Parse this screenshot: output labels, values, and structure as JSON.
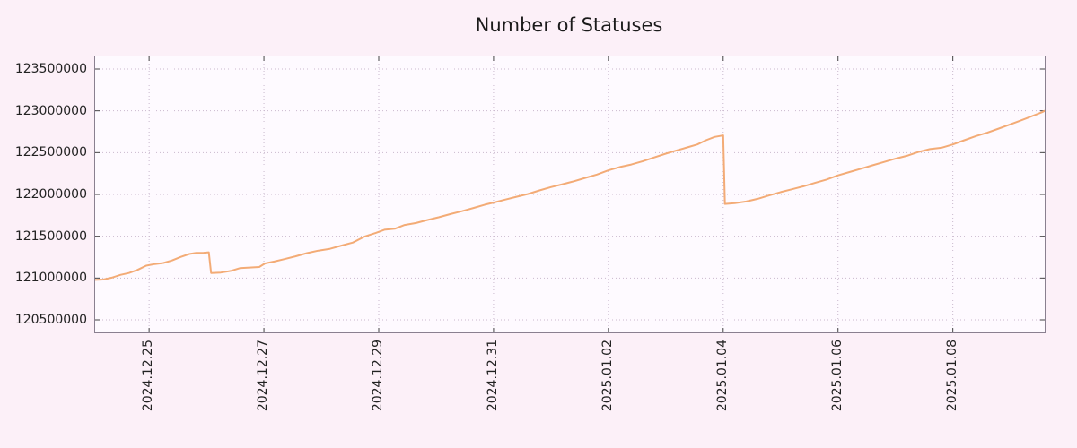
{
  "title": "Number of Statuses",
  "colors": {
    "page_background": "#fcf0f8",
    "plot_background": "#fefaff",
    "line": "#f3ab76",
    "grid": "#c9b8cd",
    "axis_border": "#8a8090",
    "tick": "#444444",
    "text": "#222222"
  },
  "chart_data": {
    "type": "line",
    "title": "Number of Statuses",
    "xlabel": "",
    "ylabel": "",
    "legend": "none",
    "grid": "dotted",
    "x_unit": "days since 2024-12-24 00:00",
    "xlim": [
      0.06,
      16.6
    ],
    "ylim": [
      120350000,
      123650000
    ],
    "y_ticks": [
      120500000,
      121000000,
      121500000,
      122000000,
      122500000,
      123000000,
      123500000
    ],
    "x_ticks": [
      {
        "pos": 1,
        "label": "2024.12.25"
      },
      {
        "pos": 3,
        "label": "2024.12.27"
      },
      {
        "pos": 5,
        "label": "2024.12.29"
      },
      {
        "pos": 7,
        "label": "2024.12.31"
      },
      {
        "pos": 9,
        "label": "2025.01.02"
      },
      {
        "pos": 11,
        "label": "2025.01.04"
      },
      {
        "pos": 13,
        "label": "2025.01.06"
      },
      {
        "pos": 15,
        "label": "2025.01.08"
      }
    ],
    "series": [
      {
        "name": "statuses",
        "color": "#f3ab76",
        "points": [
          [
            0.06,
            120978000
          ],
          [
            0.2,
            120982000
          ],
          [
            0.35,
            121005000
          ],
          [
            0.5,
            121038000
          ],
          [
            0.65,
            121060000
          ],
          [
            0.8,
            121098000
          ],
          [
            0.95,
            121148000
          ],
          [
            1.1,
            121168000
          ],
          [
            1.25,
            121180000
          ],
          [
            1.4,
            121210000
          ],
          [
            1.55,
            121252000
          ],
          [
            1.7,
            121288000
          ],
          [
            1.82,
            121300000
          ],
          [
            1.95,
            121303000
          ],
          [
            2.04,
            121308000
          ],
          [
            2.08,
            121060000
          ],
          [
            2.25,
            121066000
          ],
          [
            2.42,
            121085000
          ],
          [
            2.58,
            121118000
          ],
          [
            2.75,
            121126000
          ],
          [
            2.92,
            121132000
          ],
          [
            3.02,
            121175000
          ],
          [
            3.18,
            121198000
          ],
          [
            3.35,
            121225000
          ],
          [
            3.55,
            121260000
          ],
          [
            3.75,
            121298000
          ],
          [
            3.95,
            121328000
          ],
          [
            4.15,
            121350000
          ],
          [
            4.35,
            121388000
          ],
          [
            4.55,
            121425000
          ],
          [
            4.75,
            121495000
          ],
          [
            4.95,
            121540000
          ],
          [
            5.1,
            121578000
          ],
          [
            5.28,
            121590000
          ],
          [
            5.45,
            121635000
          ],
          [
            5.65,
            121658000
          ],
          [
            5.85,
            121695000
          ],
          [
            6.05,
            121728000
          ],
          [
            6.25,
            121765000
          ],
          [
            6.45,
            121800000
          ],
          [
            6.65,
            121838000
          ],
          [
            6.85,
            121878000
          ],
          [
            7.0,
            121902000
          ],
          [
            7.2,
            121938000
          ],
          [
            7.4,
            121972000
          ],
          [
            7.6,
            122005000
          ],
          [
            7.8,
            122048000
          ],
          [
            8.0,
            122088000
          ],
          [
            8.2,
            122122000
          ],
          [
            8.4,
            122158000
          ],
          [
            8.6,
            122198000
          ],
          [
            8.8,
            122238000
          ],
          [
            9.0,
            122288000
          ],
          [
            9.2,
            122328000
          ],
          [
            9.4,
            122358000
          ],
          [
            9.6,
            122398000
          ],
          [
            9.8,
            122442000
          ],
          [
            10.0,
            122488000
          ],
          [
            10.2,
            122528000
          ],
          [
            10.4,
            122568000
          ],
          [
            10.55,
            122598000
          ],
          [
            10.7,
            122648000
          ],
          [
            10.85,
            122688000
          ],
          [
            10.95,
            122700000
          ],
          [
            11.0,
            122706000
          ],
          [
            11.03,
            121886000
          ],
          [
            11.2,
            121896000
          ],
          [
            11.4,
            121915000
          ],
          [
            11.6,
            121948000
          ],
          [
            11.8,
            121988000
          ],
          [
            12.0,
            122028000
          ],
          [
            12.2,
            122062000
          ],
          [
            12.4,
            122098000
          ],
          [
            12.6,
            122138000
          ],
          [
            12.8,
            122178000
          ],
          [
            13.0,
            122228000
          ],
          [
            13.2,
            122268000
          ],
          [
            13.4,
            122308000
          ],
          [
            13.6,
            122348000
          ],
          [
            13.8,
            122388000
          ],
          [
            14.0,
            122428000
          ],
          [
            14.2,
            122462000
          ],
          [
            14.4,
            122508000
          ],
          [
            14.6,
            122542000
          ],
          [
            14.8,
            122558000
          ],
          [
            15.0,
            122598000
          ],
          [
            15.2,
            122648000
          ],
          [
            15.4,
            122698000
          ],
          [
            15.6,
            122738000
          ],
          [
            15.8,
            122788000
          ],
          [
            16.0,
            122838000
          ],
          [
            16.2,
            122888000
          ],
          [
            16.4,
            122942000
          ],
          [
            16.55,
            122982000
          ],
          [
            16.6,
            123000000
          ]
        ]
      }
    ]
  }
}
